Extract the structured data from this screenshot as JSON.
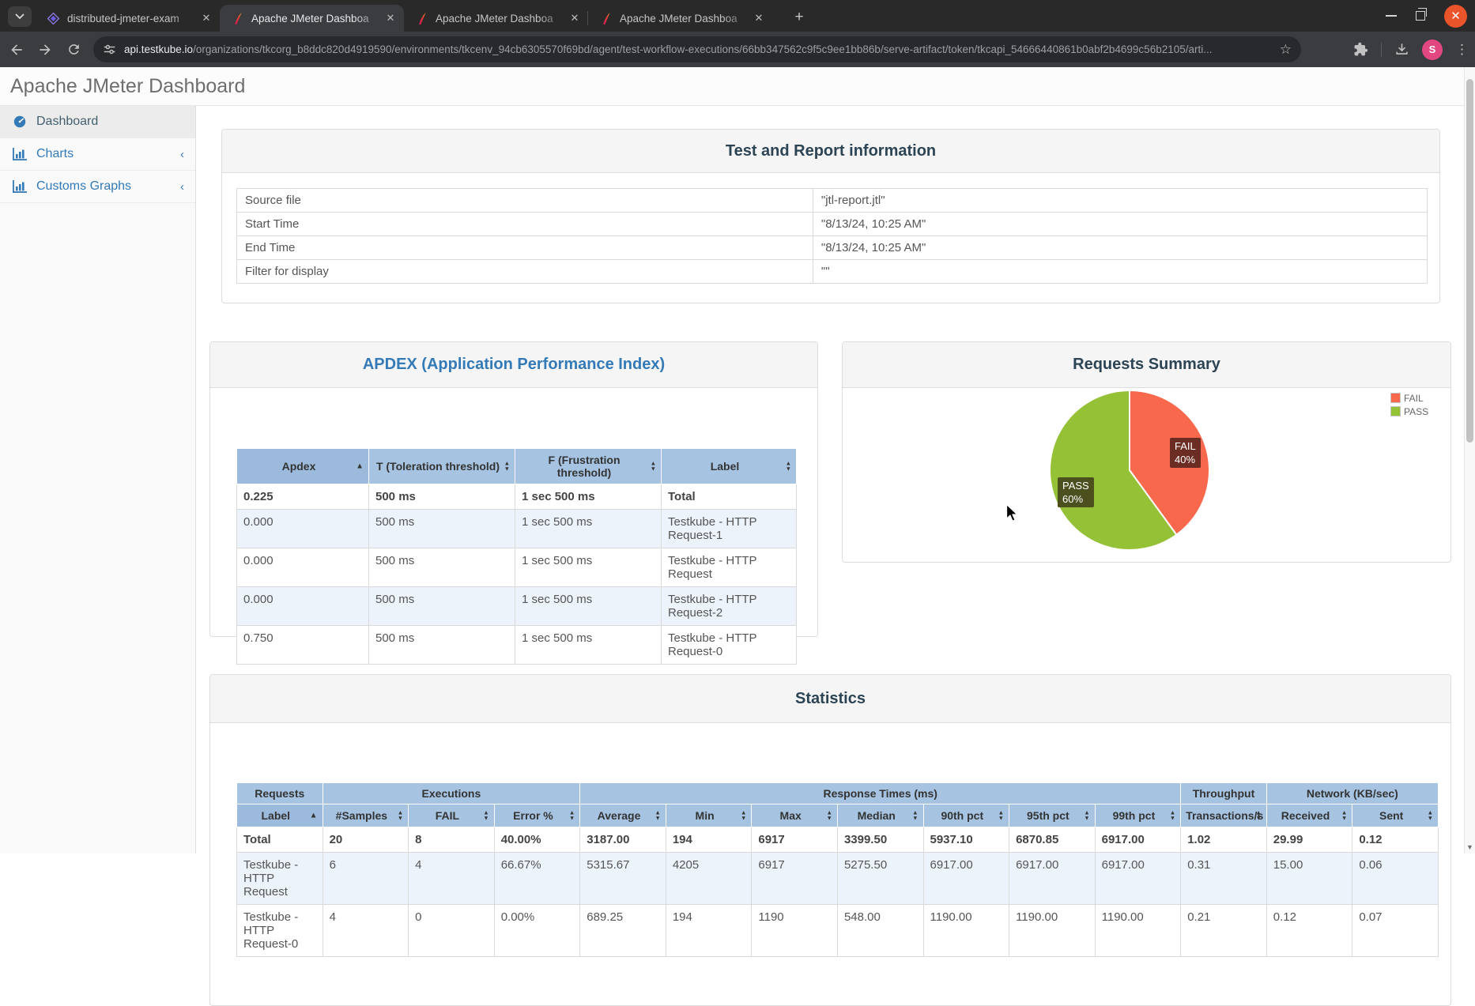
{
  "browser": {
    "tabs": [
      {
        "title": "distributed-jmeter-exam",
        "icon": "cube",
        "active": false
      },
      {
        "title": "Apache JMeter Dashboa",
        "icon": "jmeter",
        "active": true
      },
      {
        "title": "Apache JMeter Dashboa",
        "icon": "jmeter",
        "active": false
      },
      {
        "title": "Apache JMeter Dashboa",
        "icon": "jmeter",
        "active": false
      }
    ],
    "new_tab_label": "+",
    "url_domain": "api.testkube.io",
    "url_path": "/organizations/tkcorg_b8ddc820d4919590/environments/tkcenv_94cb6305570f69bd/agent/test-workflow-executions/66bb347562c9f5c9ee1bb86b/serve-artifact/token/tkcapi_54666440861b0abf2b4699c56b2105/arti...",
    "avatar_initial": "S"
  },
  "page": {
    "title": "Apache JMeter Dashboard"
  },
  "sidebar": {
    "items": [
      {
        "label": "Dashboard",
        "icon": "gauge",
        "active": true,
        "collapsible": false
      },
      {
        "label": "Charts",
        "icon": "bars",
        "active": false,
        "collapsible": true
      },
      {
        "label": "Customs Graphs",
        "icon": "bars",
        "active": false,
        "collapsible": true
      }
    ],
    "collapse_chevron": "‹"
  },
  "info_panel": {
    "title": "Test and Report information",
    "rows": [
      [
        "Source file",
        "\"jtl-report.jtl\""
      ],
      [
        "Start Time",
        "\"8/13/24, 10:25 AM\""
      ],
      [
        "End Time",
        "\"8/13/24, 10:25 AM\""
      ],
      [
        "Filter for display",
        "\"\""
      ]
    ]
  },
  "apdex_panel": {
    "title": "APDEX (Application Performance Index)",
    "columns": [
      {
        "label": "Apdex",
        "sort": "asc"
      },
      {
        "label": "T (Toleration threshold)",
        "sort": "both"
      },
      {
        "label": "F (Frustration threshold)",
        "sort": "both"
      },
      {
        "label": "Label",
        "sort": "both"
      }
    ],
    "rows": [
      [
        "0.225",
        "500 ms",
        "1 sec 500 ms",
        "Total"
      ],
      [
        "0.000",
        "500 ms",
        "1 sec 500 ms",
        "Testkube - HTTP Request-1"
      ],
      [
        "0.000",
        "500 ms",
        "1 sec 500 ms",
        "Testkube - HTTP Request"
      ],
      [
        "0.000",
        "500 ms",
        "1 sec 500 ms",
        "Testkube - HTTP Request-2"
      ],
      [
        "0.750",
        "500 ms",
        "1 sec 500 ms",
        "Testkube - HTTP Request-0"
      ]
    ]
  },
  "requests_panel": {
    "title": "Requests Summary"
  },
  "chart_data": {
    "type": "pie",
    "title": "Requests Summary",
    "labels": [
      "FAIL",
      "PASS"
    ],
    "values": [
      40,
      60
    ],
    "colors": [
      "#f8684c",
      "#95c137"
    ],
    "legend_position": "top-right",
    "legend": [
      {
        "label": "FAIL",
        "color": "#f8684c"
      },
      {
        "label": "PASS",
        "color": "#95c137"
      }
    ],
    "pie_labels": [
      {
        "name": "FAIL",
        "pct": "40%"
      },
      {
        "name": "PASS",
        "pct": "60%"
      }
    ]
  },
  "statistics_panel": {
    "title": "Statistics",
    "groups": [
      {
        "label": "Requests",
        "span": 1
      },
      {
        "label": "Executions",
        "span": 3
      },
      {
        "label": "Response Times (ms)",
        "span": 7
      },
      {
        "label": "Throughput",
        "span": 1
      },
      {
        "label": "Network (KB/sec)",
        "span": 2
      }
    ],
    "columns": [
      {
        "label": "Label",
        "sort": "asc"
      },
      {
        "label": "#Samples",
        "sort": "both"
      },
      {
        "label": "FAIL",
        "sort": "both"
      },
      {
        "label": "Error %",
        "sort": "both"
      },
      {
        "label": "Average",
        "sort": "both"
      },
      {
        "label": "Min",
        "sort": "both"
      },
      {
        "label": "Max",
        "sort": "both"
      },
      {
        "label": "Median",
        "sort": "both"
      },
      {
        "label": "90th pct",
        "sort": "both"
      },
      {
        "label": "95th pct",
        "sort": "both"
      },
      {
        "label": "99th pct",
        "sort": "both"
      },
      {
        "label": "Transactions/s",
        "sort": "both"
      },
      {
        "label": "Received",
        "sort": "both"
      },
      {
        "label": "Sent",
        "sort": "both"
      }
    ],
    "rows": [
      [
        "Total",
        "20",
        "8",
        "40.00%",
        "3187.00",
        "194",
        "6917",
        "3399.50",
        "5937.10",
        "6870.85",
        "6917.00",
        "1.02",
        "29.99",
        "0.12"
      ],
      [
        "Testkube - HTTP Request",
        "6",
        "4",
        "66.67%",
        "5315.67",
        "4205",
        "6917",
        "5275.50",
        "6917.00",
        "6917.00",
        "6917.00",
        "0.31",
        "15.00",
        "0.06"
      ],
      [
        "Testkube - HTTP Request-0",
        "4",
        "0",
        "0.00%",
        "689.25",
        "194",
        "1190",
        "548.00",
        "1190.00",
        "1190.00",
        "1190.00",
        "0.21",
        "0.12",
        "0.07"
      ]
    ]
  }
}
